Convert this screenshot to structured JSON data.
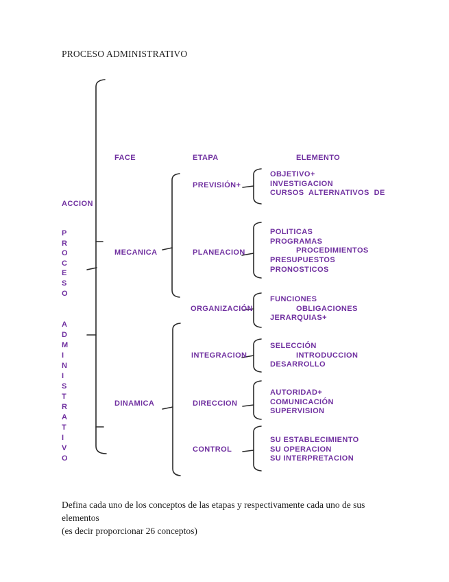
{
  "page": {
    "title": "PROCESO ADMINISTRATIVO",
    "footer_line1": "Defina cada uno de los conceptos de las etapas y respectivamente cada uno de sus elementos",
    "footer_line2": "(es decir proporcionar 26 conceptos)"
  },
  "colors": {
    "accent_purple": "#7030A0",
    "ink_black": "#1f1f1f",
    "line_black": "#2a2a2a"
  },
  "headers": {
    "face": "FACE",
    "etapa": "ETAPA",
    "elemento": "ELEMENTO"
  },
  "left_rail": {
    "accion": "ACCION",
    "proceso_vertical": "PROCESO",
    "administrativo_vertical": "ADMINISTRATIVO"
  },
  "fases": {
    "mecanica": "MECANICA",
    "dinamica": "DINAMICA"
  },
  "etapas": [
    {
      "label": "PREVISIÓN+",
      "elementos": [
        "OBJETIVO+",
        "INVESTIGACION",
        "CURSOS  ALTERNATIVOS  DE"
      ]
    },
    {
      "label": "PLANEACION",
      "elementos": [
        "POLITICAS",
        "PROGRAMAS",
        "PROCEDIMIENTOS",
        "PRESUPUESTOS",
        "PRONOSTICOS"
      ]
    },
    {
      "label": "ORGANIZACIÓN",
      "elementos": [
        "FUNCIONES",
        "OBLIGACIONES",
        "JERARQUIAS+"
      ]
    },
    {
      "label": "INTEGRACION",
      "elementos": [
        "SELECCIÓN",
        "INTRODUCCION",
        "DESARROLLO"
      ]
    },
    {
      "label": "DIRECCION",
      "elementos": [
        "AUTORIDAD+",
        "COMUNICACIÓN",
        "SUPERVISION"
      ]
    },
    {
      "label": "CONTROL",
      "elementos": [
        "SU ESTABLECIMIENTO",
        "SU OPERACION",
        "SU INTERPRETACION"
      ]
    }
  ]
}
